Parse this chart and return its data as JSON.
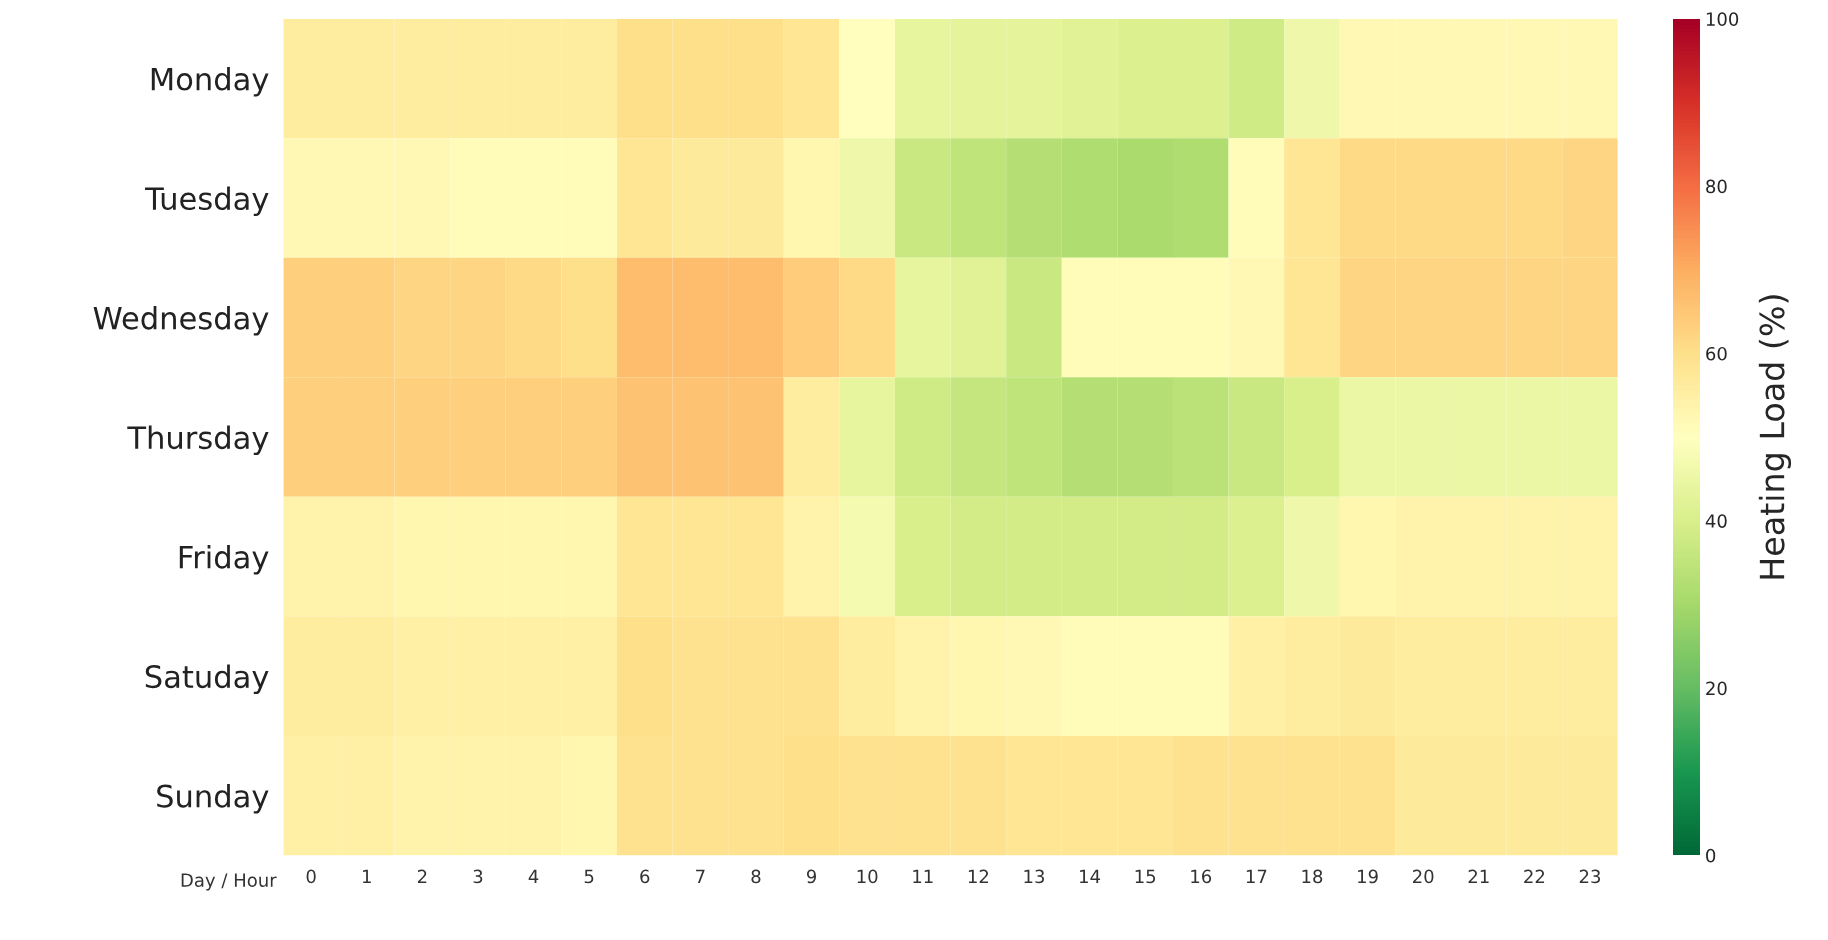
{
  "chart_data": {
    "type": "heatmap",
    "xlabel": "Day / Hour",
    "clabel": "Heating Load (%)",
    "categories": [
      "0",
      "1",
      "2",
      "3",
      "4",
      "5",
      "6",
      "7",
      "8",
      "9",
      "10",
      "11",
      "12",
      "13",
      "14",
      "15",
      "16",
      "17",
      "18",
      "19",
      "20",
      "21",
      "22",
      "23"
    ],
    "y_categories": [
      "Monday",
      "Tuesday",
      "Wednesday",
      "Thursday",
      "Friday",
      "Satuday",
      "Sunday"
    ],
    "cells": [
      [
        56,
        56,
        56,
        56,
        56,
        56,
        60,
        60,
        60,
        58,
        50,
        44,
        43,
        43,
        42,
        41,
        41,
        38,
        46,
        52,
        52,
        52,
        52,
        52
      ],
      [
        52,
        52,
        52,
        51,
        51,
        51,
        58,
        57,
        57,
        53,
        46,
        37,
        35,
        33,
        32,
        31,
        32,
        51,
        58,
        61,
        61,
        61,
        61,
        62
      ],
      [
        63,
        63,
        62,
        62,
        61,
        60,
        67,
        67,
        67,
        64,
        61,
        44,
        42,
        37,
        51,
        51,
        51,
        52,
        58,
        62,
        62,
        62,
        62,
        62
      ],
      [
        63,
        63,
        63,
        63,
        63,
        63,
        66,
        66,
        66,
        56,
        44,
        38,
        36,
        35,
        33,
        33,
        34,
        37,
        40,
        45,
        45,
        45,
        45,
        45
      ],
      [
        54,
        54,
        53,
        53,
        53,
        53,
        58,
        58,
        58,
        54,
        47,
        40,
        39,
        39,
        39,
        39,
        39,
        41,
        46,
        53,
        54,
        54,
        54,
        54
      ],
      [
        56,
        56,
        55,
        55,
        55,
        55,
        60,
        59,
        59,
        59,
        56,
        54,
        53,
        52,
        51,
        51,
        51,
        55,
        56,
        57,
        56,
        56,
        56,
        56
      ],
      [
        55,
        55,
        54,
        54,
        54,
        53,
        59,
        59,
        59,
        60,
        59,
        59,
        59,
        58,
        58,
        58,
        59,
        59,
        59,
        59,
        57,
        57,
        57,
        57
      ]
    ],
    "clim": [
      0,
      100
    ],
    "cticks": [
      0,
      20,
      40,
      60,
      80,
      100
    ]
  }
}
